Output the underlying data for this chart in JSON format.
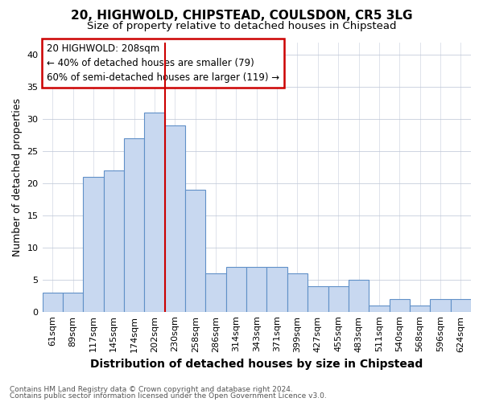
{
  "title1": "20, HIGHWOLD, CHIPSTEAD, COULSDON, CR5 3LG",
  "title2": "Size of property relative to detached houses in Chipstead",
  "xlabel": "Distribution of detached houses by size in Chipstead",
  "ylabel": "Number of detached properties",
  "bin_labels": [
    "61sqm",
    "89sqm",
    "117sqm",
    "145sqm",
    "174sqm",
    "202sqm",
    "230sqm",
    "258sqm",
    "286sqm",
    "314sqm",
    "343sqm",
    "371sqm",
    "399sqm",
    "427sqm",
    "455sqm",
    "483sqm",
    "511sqm",
    "540sqm",
    "568sqm",
    "596sqm",
    "624sqm"
  ],
  "bar_heights": [
    3,
    3,
    21,
    22,
    27,
    31,
    29,
    19,
    6,
    7,
    7,
    7,
    6,
    4,
    4,
    5,
    1,
    2,
    1,
    2,
    2
  ],
  "bar_color": "#c8d8f0",
  "bar_edge_color": "#6090c8",
  "vline_color": "#cc0000",
  "vline_x": 5.5,
  "annotation_text": "20 HIGHWOLD: 208sqm\n← 40% of detached houses are smaller (79)\n60% of semi-detached houses are larger (119) →",
  "yticks": [
    0,
    5,
    10,
    15,
    20,
    25,
    30,
    35,
    40
  ],
  "ylim": [
    0,
    42
  ],
  "bg_color": "#ffffff",
  "grid_color": "#c0c8d8",
  "footer1": "Contains HM Land Registry data © Crown copyright and database right 2024.",
  "footer2": "Contains public sector information licensed under the Open Government Licence v3.0.",
  "title_fontsize": 11,
  "subtitle_fontsize": 9.5,
  "ylabel_fontsize": 9,
  "xlabel_fontsize": 10,
  "tick_fontsize": 8,
  "ann_fontsize": 8.5,
  "footer_fontsize": 6.5
}
